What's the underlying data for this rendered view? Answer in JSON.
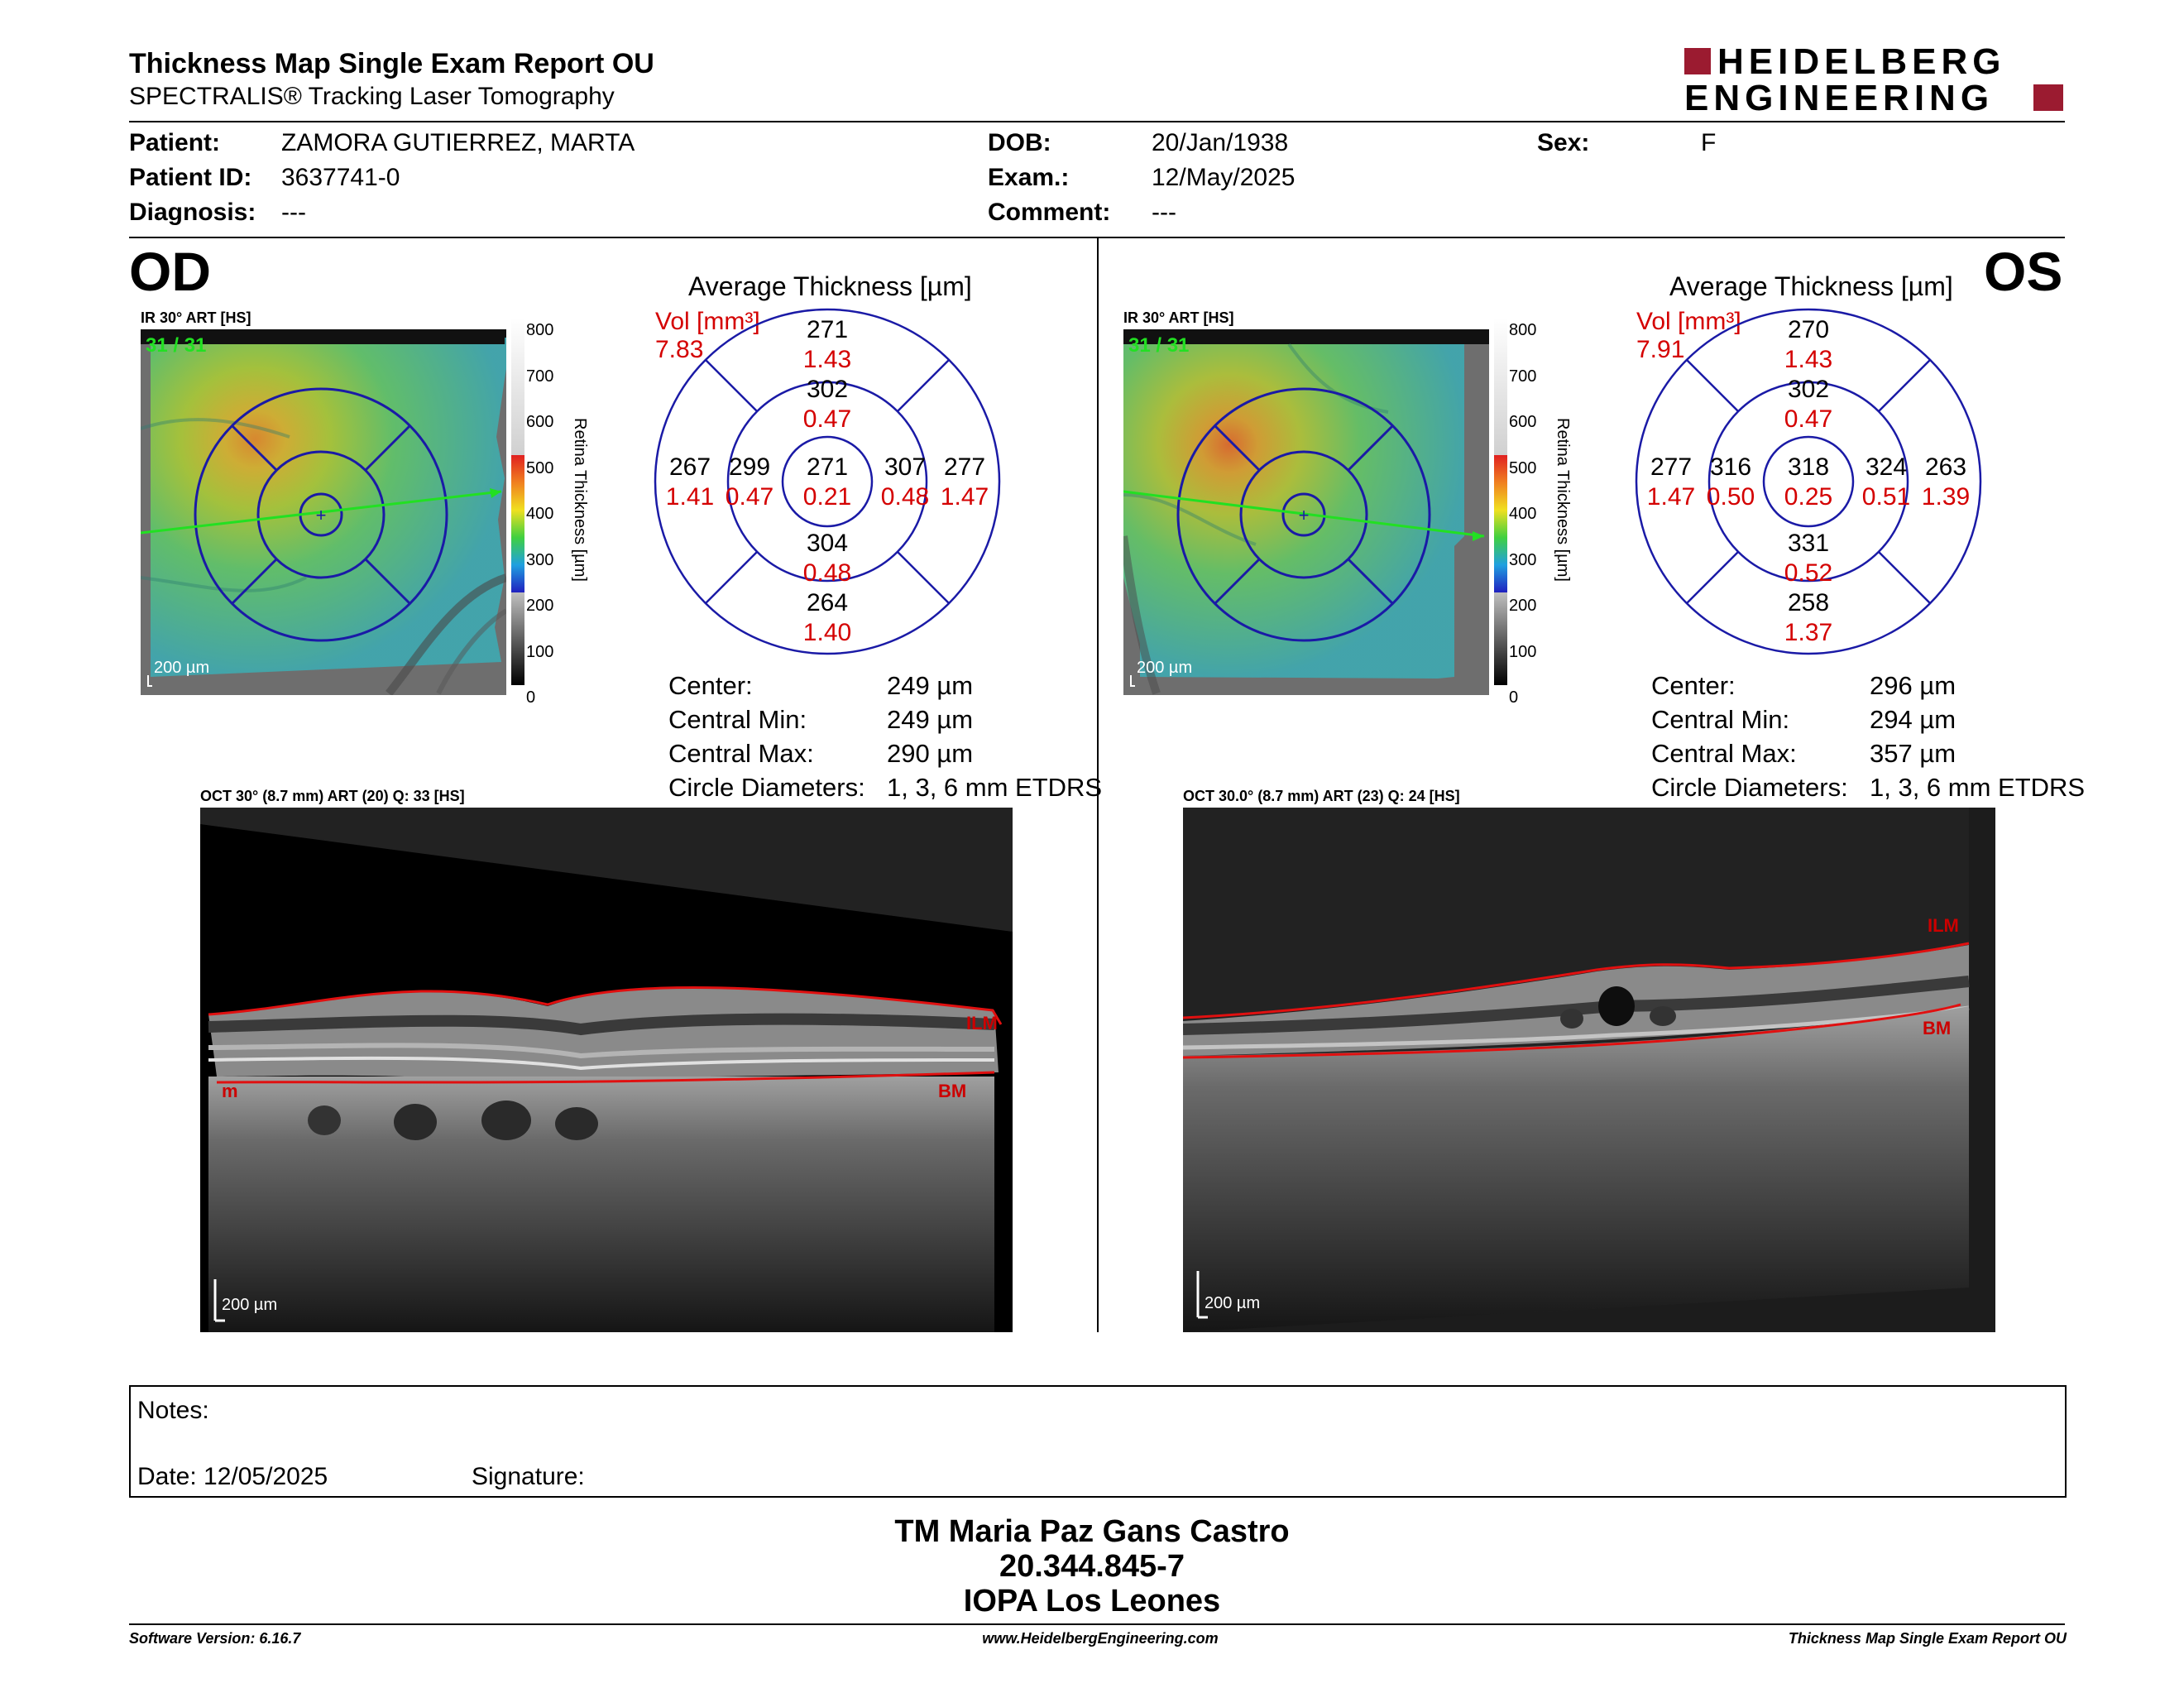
{
  "header": {
    "title": "Thickness Map Single Exam Report OU",
    "subtitle": "SPECTRALIS® Tracking Laser Tomography",
    "logo_line1": "HEIDELBERG",
    "logo_line2": "ENGINEERING"
  },
  "patient": {
    "patient_label": "Patient:",
    "patient_value": "ZAMORA GUTIERREZ, MARTA",
    "id_label": "Patient ID:",
    "id_value": "3637741-0",
    "diagnosis_label": "Diagnosis:",
    "diagnosis_value": "---",
    "dob_label": "DOB:",
    "dob_value": "20/Jan/1938",
    "exam_label": "Exam.:",
    "exam_value": "12/May/2025",
    "comment_label": "Comment:",
    "comment_value": "---",
    "sex_label": "Sex:",
    "sex_value": "F"
  },
  "colorbar": {
    "ticks": [
      "800",
      "700",
      "600",
      "500",
      "400",
      "300",
      "200",
      "100",
      "0"
    ],
    "label": "Retina Thickness [µm]"
  },
  "od": {
    "eye": "OD",
    "ir_label": "IR 30° ART [HS]",
    "ir_counter": "31 / 31",
    "scale": "200 µm",
    "map_title": "Average Thickness [µm]",
    "vol_label": "Vol [mm³]",
    "vol_value": "7.83",
    "grid": {
      "center": {
        "t": "271",
        "v": "0.21"
      },
      "inner_sup": {
        "t": "302",
        "v": "0.47"
      },
      "inner_inf": {
        "t": "304",
        "v": "0.48"
      },
      "inner_left": {
        "t": "299",
        "v": "0.47"
      },
      "inner_right": {
        "t": "307",
        "v": "0.48"
      },
      "outer_sup": {
        "t": "271",
        "v": "1.43"
      },
      "outer_inf": {
        "t": "264",
        "v": "1.40"
      },
      "outer_left": {
        "t": "267",
        "v": "1.41"
      },
      "outer_right": {
        "t": "277",
        "v": "1.47"
      }
    },
    "stats": [
      {
        "label": "Center:",
        "value": "249 µm"
      },
      {
        "label": "Central Min:",
        "value": "249 µm"
      },
      {
        "label": "Central Max:",
        "value": "290 µm"
      },
      {
        "label": "Circle Diameters:",
        "value": "1, 3, 6 mm ETDRS"
      }
    ],
    "oct_label": "OCT 30° (8.7 mm) ART (20) Q: 33 [HS]",
    "ilm": "ILM",
    "bm": "BM",
    "bm_left": "m",
    "oct_scale": "200 µm"
  },
  "os": {
    "eye": "OS",
    "ir_label": "IR 30° ART [HS]",
    "ir_counter": "31 / 31",
    "scale": "200 µm",
    "map_title": "Average Thickness [µm]",
    "vol_label": "Vol [mm³]",
    "vol_value": "7.91",
    "grid": {
      "center": {
        "t": "318",
        "v": "0.25"
      },
      "inner_sup": {
        "t": "302",
        "v": "0.47"
      },
      "inner_inf": {
        "t": "331",
        "v": "0.52"
      },
      "inner_left": {
        "t": "316",
        "v": "0.50"
      },
      "inner_right": {
        "t": "324",
        "v": "0.51"
      },
      "outer_sup": {
        "t": "270",
        "v": "1.43"
      },
      "outer_inf": {
        "t": "258",
        "v": "1.37"
      },
      "outer_left": {
        "t": "277",
        "v": "1.47"
      },
      "outer_right": {
        "t": "263",
        "v": "1.39"
      }
    },
    "stats": [
      {
        "label": "Center:",
        "value": "296 µm"
      },
      {
        "label": "Central Min:",
        "value": "294 µm"
      },
      {
        "label": "Central Max:",
        "value": "357 µm"
      },
      {
        "label": "Circle Diameters:",
        "value": "1, 3, 6 mm ETDRS"
      }
    ],
    "oct_label": "OCT 30.0° (8.7 mm) ART (23) Q: 24 [HS]",
    "ilm": "ILM",
    "bm": "BM",
    "oct_scale": "200 µm"
  },
  "notes": {
    "notes_label": "Notes:",
    "date_label": "Date: 12/05/2025",
    "signature_label": "Signature:"
  },
  "signature_block": {
    "name": "TM Maria Paz Gans Castro",
    "rut": "20.344.845-7",
    "institution": "IOPA Los Leones"
  },
  "footer": {
    "software": "Software Version: 6.16.7",
    "website": "www.HeidelbergEngineering.com",
    "report": "Thickness Map Single Exam Report OU"
  },
  "colors": {
    "accent_red": "#d40000",
    "logo_red": "#9b1b30",
    "grid_blue": "#1a1aa6",
    "scan_green": "#22e022"
  }
}
